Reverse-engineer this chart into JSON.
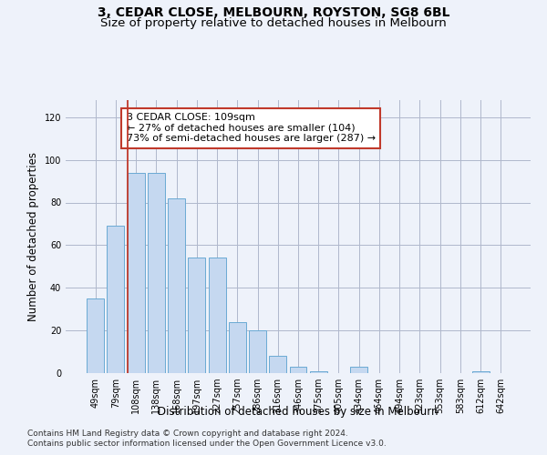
{
  "title_line1": "3, CEDAR CLOSE, MELBOURN, ROYSTON, SG8 6BL",
  "title_line2": "Size of property relative to detached houses in Melbourn",
  "xlabel": "Distribution of detached houses by size in Melbourn",
  "ylabel": "Number of detached properties",
  "categories": [
    "49sqm",
    "79sqm",
    "108sqm",
    "138sqm",
    "168sqm",
    "197sqm",
    "227sqm",
    "257sqm",
    "286sqm",
    "316sqm",
    "346sqm",
    "375sqm",
    "405sqm",
    "434sqm",
    "464sqm",
    "494sqm",
    "523sqm",
    "553sqm",
    "583sqm",
    "612sqm",
    "642sqm"
  ],
  "values": [
    35,
    69,
    94,
    94,
    82,
    54,
    54,
    24,
    20,
    8,
    3,
    1,
    0,
    3,
    0,
    0,
    0,
    0,
    0,
    1,
    0
  ],
  "bar_color": "#c5d8f0",
  "bar_edge_color": "#6aaad4",
  "vline_index": 2,
  "vline_color": "#c0392b",
  "annotation_text": "3 CEDAR CLOSE: 109sqm\n← 27% of detached houses are smaller (104)\n73% of semi-detached houses are larger (287) →",
  "annotation_box_color": "white",
  "annotation_box_edge": "#c0392b",
  "ylim": [
    0,
    128
  ],
  "yticks": [
    0,
    20,
    40,
    60,
    80,
    100,
    120
  ],
  "grid_color": "#b0b8cc",
  "background_color": "#eef2fa",
  "footer_line1": "Contains HM Land Registry data © Crown copyright and database right 2024.",
  "footer_line2": "Contains public sector information licensed under the Open Government Licence v3.0.",
  "title_fontsize": 10,
  "subtitle_fontsize": 9.5,
  "axis_label_fontsize": 8.5,
  "tick_fontsize": 7,
  "annotation_fontsize": 8,
  "footer_fontsize": 6.5
}
